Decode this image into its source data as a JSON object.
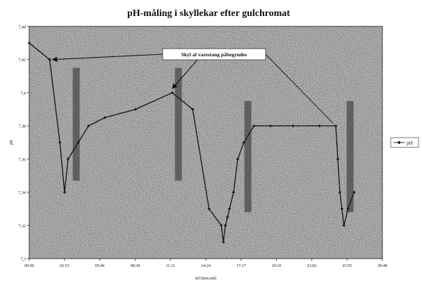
{
  "chart_data": {
    "type": "line",
    "title": "pH-måling i skyllekar efter gulchromat",
    "xlabel": "tid [min:sek]",
    "ylabel": "pH",
    "ylim": [
      7.3,
      7.44
    ],
    "xlim": [
      0,
      1728
    ],
    "yticks": [
      "7,3",
      "7,32",
      "7,34",
      "7,36",
      "7,38",
      "7,4",
      "7,42",
      "7,44"
    ],
    "xtick_labels": [
      "00:00",
      "02:53",
      "05:46",
      "08:38",
      "11:31",
      "14:24",
      "17:17",
      "20:10",
      "23:02",
      "25:55",
      "28:48"
    ],
    "grid": false,
    "legend": {
      "position": "right",
      "entries": [
        "pH"
      ]
    },
    "series": [
      {
        "name": "pH",
        "color": "#1a1a1a",
        "marker": "diamond",
        "x": [
          0,
          100,
          150,
          173,
          190,
          240,
          290,
          370,
          520,
          700,
          800,
          880,
          940,
          950,
          960,
          970,
          980,
          1000,
          1020,
          1050,
          1100,
          1180,
          1290,
          1420,
          1500,
          1510,
          1520,
          1530,
          1540,
          1560,
          1590
        ],
        "y": [
          7.43,
          7.42,
          7.37,
          7.34,
          7.36,
          7.37,
          7.38,
          7.385,
          7.39,
          7.4,
          7.39,
          7.33,
          7.32,
          7.31,
          7.32,
          7.325,
          7.33,
          7.34,
          7.36,
          7.37,
          7.38,
          7.38,
          7.38,
          7.38,
          7.38,
          7.36,
          7.34,
          7.33,
          7.32,
          7.33,
          7.34
        ]
      }
    ],
    "shaded_bars": [
      {
        "x": 230,
        "y_top": 7.415,
        "y_bottom": 7.347
      },
      {
        "x": 730,
        "y_top": 7.415,
        "y_bottom": 7.347
      },
      {
        "x": 1070,
        "y_top": 7.395,
        "y_bottom": 7.328
      },
      {
        "x": 1570,
        "y_top": 7.395,
        "y_bottom": 7.328
      }
    ],
    "annotation": {
      "text": "Skyl af varestang påbegyndes",
      "targets": [
        {
          "x": 100,
          "y": 7.42
        },
        {
          "x": 700,
          "y": 7.4
        },
        {
          "x": 1500,
          "y": 7.38
        }
      ]
    }
  }
}
